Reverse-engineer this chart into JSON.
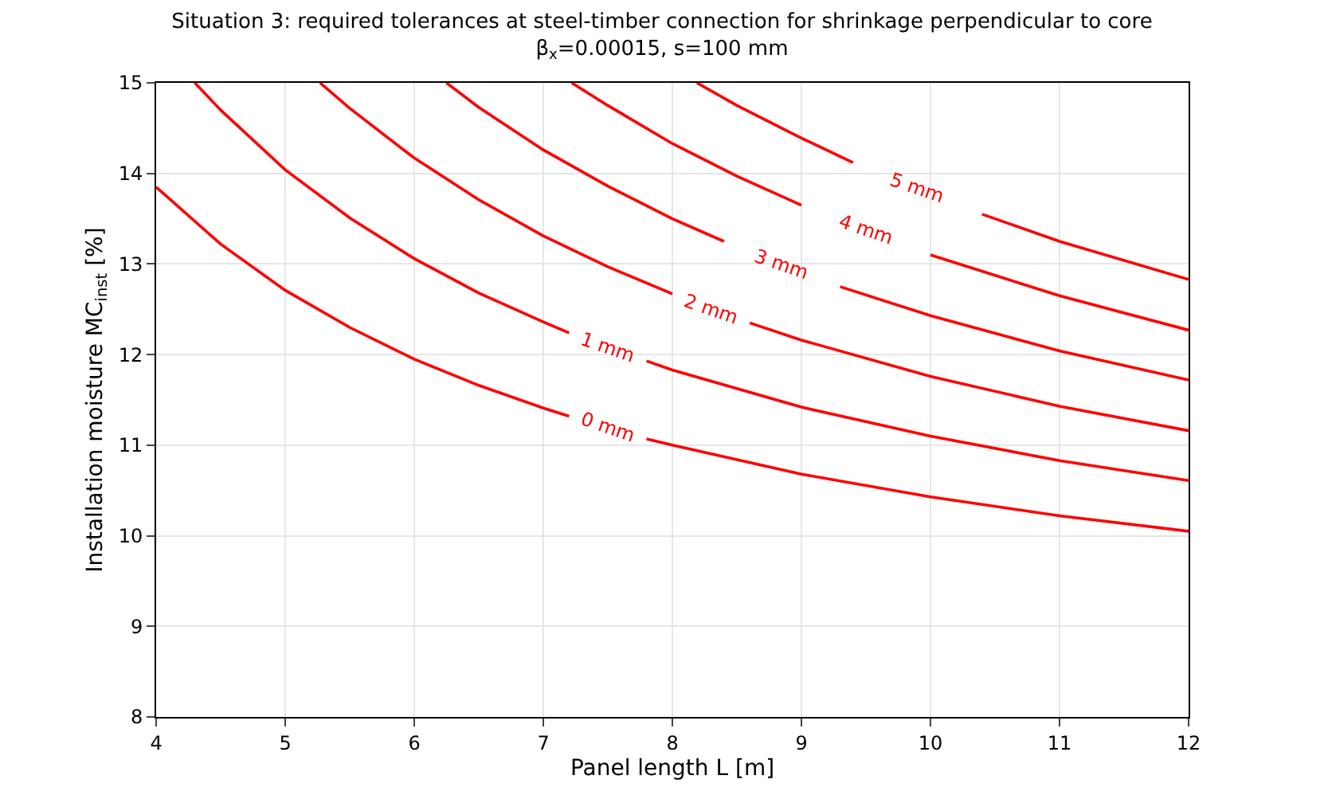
{
  "chart_data": {
    "type": "line",
    "title": "Situation 3: required tolerances at steel-timber connection for shrinkage perpendicular to core",
    "subtitle": "β$_{x}$=0.00015, s=100 mm",
    "xlabel": "Panel length L [m]",
    "ylabel": "Installation moisture MC$_{inst}$ [%]",
    "xlim": [
      4,
      12
    ],
    "ylim": [
      8,
      15
    ],
    "xticks": [
      4,
      5,
      6,
      7,
      8,
      9,
      10,
      11,
      12
    ],
    "yticks": [
      8,
      9,
      10,
      11,
      12,
      13,
      14,
      15
    ],
    "grid": true,
    "legend": false,
    "marker": "none",
    "line_style": "solid",
    "series": [
      {
        "name": "0 mm",
        "color": "#ff0000",
        "x": [
          4,
          4.5,
          5,
          5.5,
          6,
          6.5,
          7,
          7.2,
          7.5,
          7.8,
          8,
          9,
          10,
          11,
          12
        ],
        "values": [
          13.85,
          13.22,
          12.71,
          12.3,
          11.95,
          11.66,
          11.41,
          11.32,
          null,
          11.07,
          11.0,
          10.68,
          10.43,
          10.22,
          10.05
        ]
      },
      {
        "name": "1 mm",
        "color": "#ff0000",
        "x": [
          4.3,
          4.5,
          5,
          5.5,
          6,
          6.5,
          7,
          7.2,
          7.5,
          7.8,
          8,
          9,
          10,
          11,
          12
        ],
        "values": [
          15.0,
          14.7,
          14.04,
          13.51,
          13.06,
          12.68,
          12.36,
          12.24,
          null,
          11.93,
          11.83,
          11.42,
          11.1,
          10.83,
          10.61
        ]
      },
      {
        "name": "2 mm",
        "color": "#ff0000",
        "x": [
          5.27,
          5.5,
          6,
          6.5,
          7,
          7.5,
          8,
          8.3,
          8.6,
          9,
          10,
          11,
          12
        ],
        "values": [
          15.0,
          14.72,
          14.17,
          13.71,
          13.31,
          12.97,
          12.67,
          null,
          12.35,
          12.16,
          11.76,
          11.43,
          11.16
        ]
      },
      {
        "name": "3 mm",
        "color": "#ff0000",
        "x": [
          6.25,
          6.5,
          7,
          7.5,
          8,
          8.4,
          8.85,
          9.3,
          10,
          11,
          12
        ],
        "values": [
          15.0,
          14.73,
          14.26,
          13.86,
          13.5,
          13.25,
          null,
          12.75,
          12.43,
          12.04,
          11.72
        ]
      },
      {
        "name": "4 mm",
        "color": "#ff0000",
        "x": [
          7.22,
          7.5,
          8,
          8.5,
          9,
          9.5,
          10,
          11,
          12
        ],
        "values": [
          15.0,
          14.75,
          14.33,
          13.97,
          13.65,
          null,
          13.1,
          12.65,
          12.27
        ]
      },
      {
        "name": "5 mm",
        "color": "#ff0000",
        "x": [
          8.19,
          8.5,
          9,
          9.4,
          9.9,
          10.4,
          11,
          12
        ],
        "values": [
          15.0,
          14.75,
          14.39,
          14.12,
          null,
          13.55,
          13.25,
          12.83
        ]
      }
    ]
  }
}
